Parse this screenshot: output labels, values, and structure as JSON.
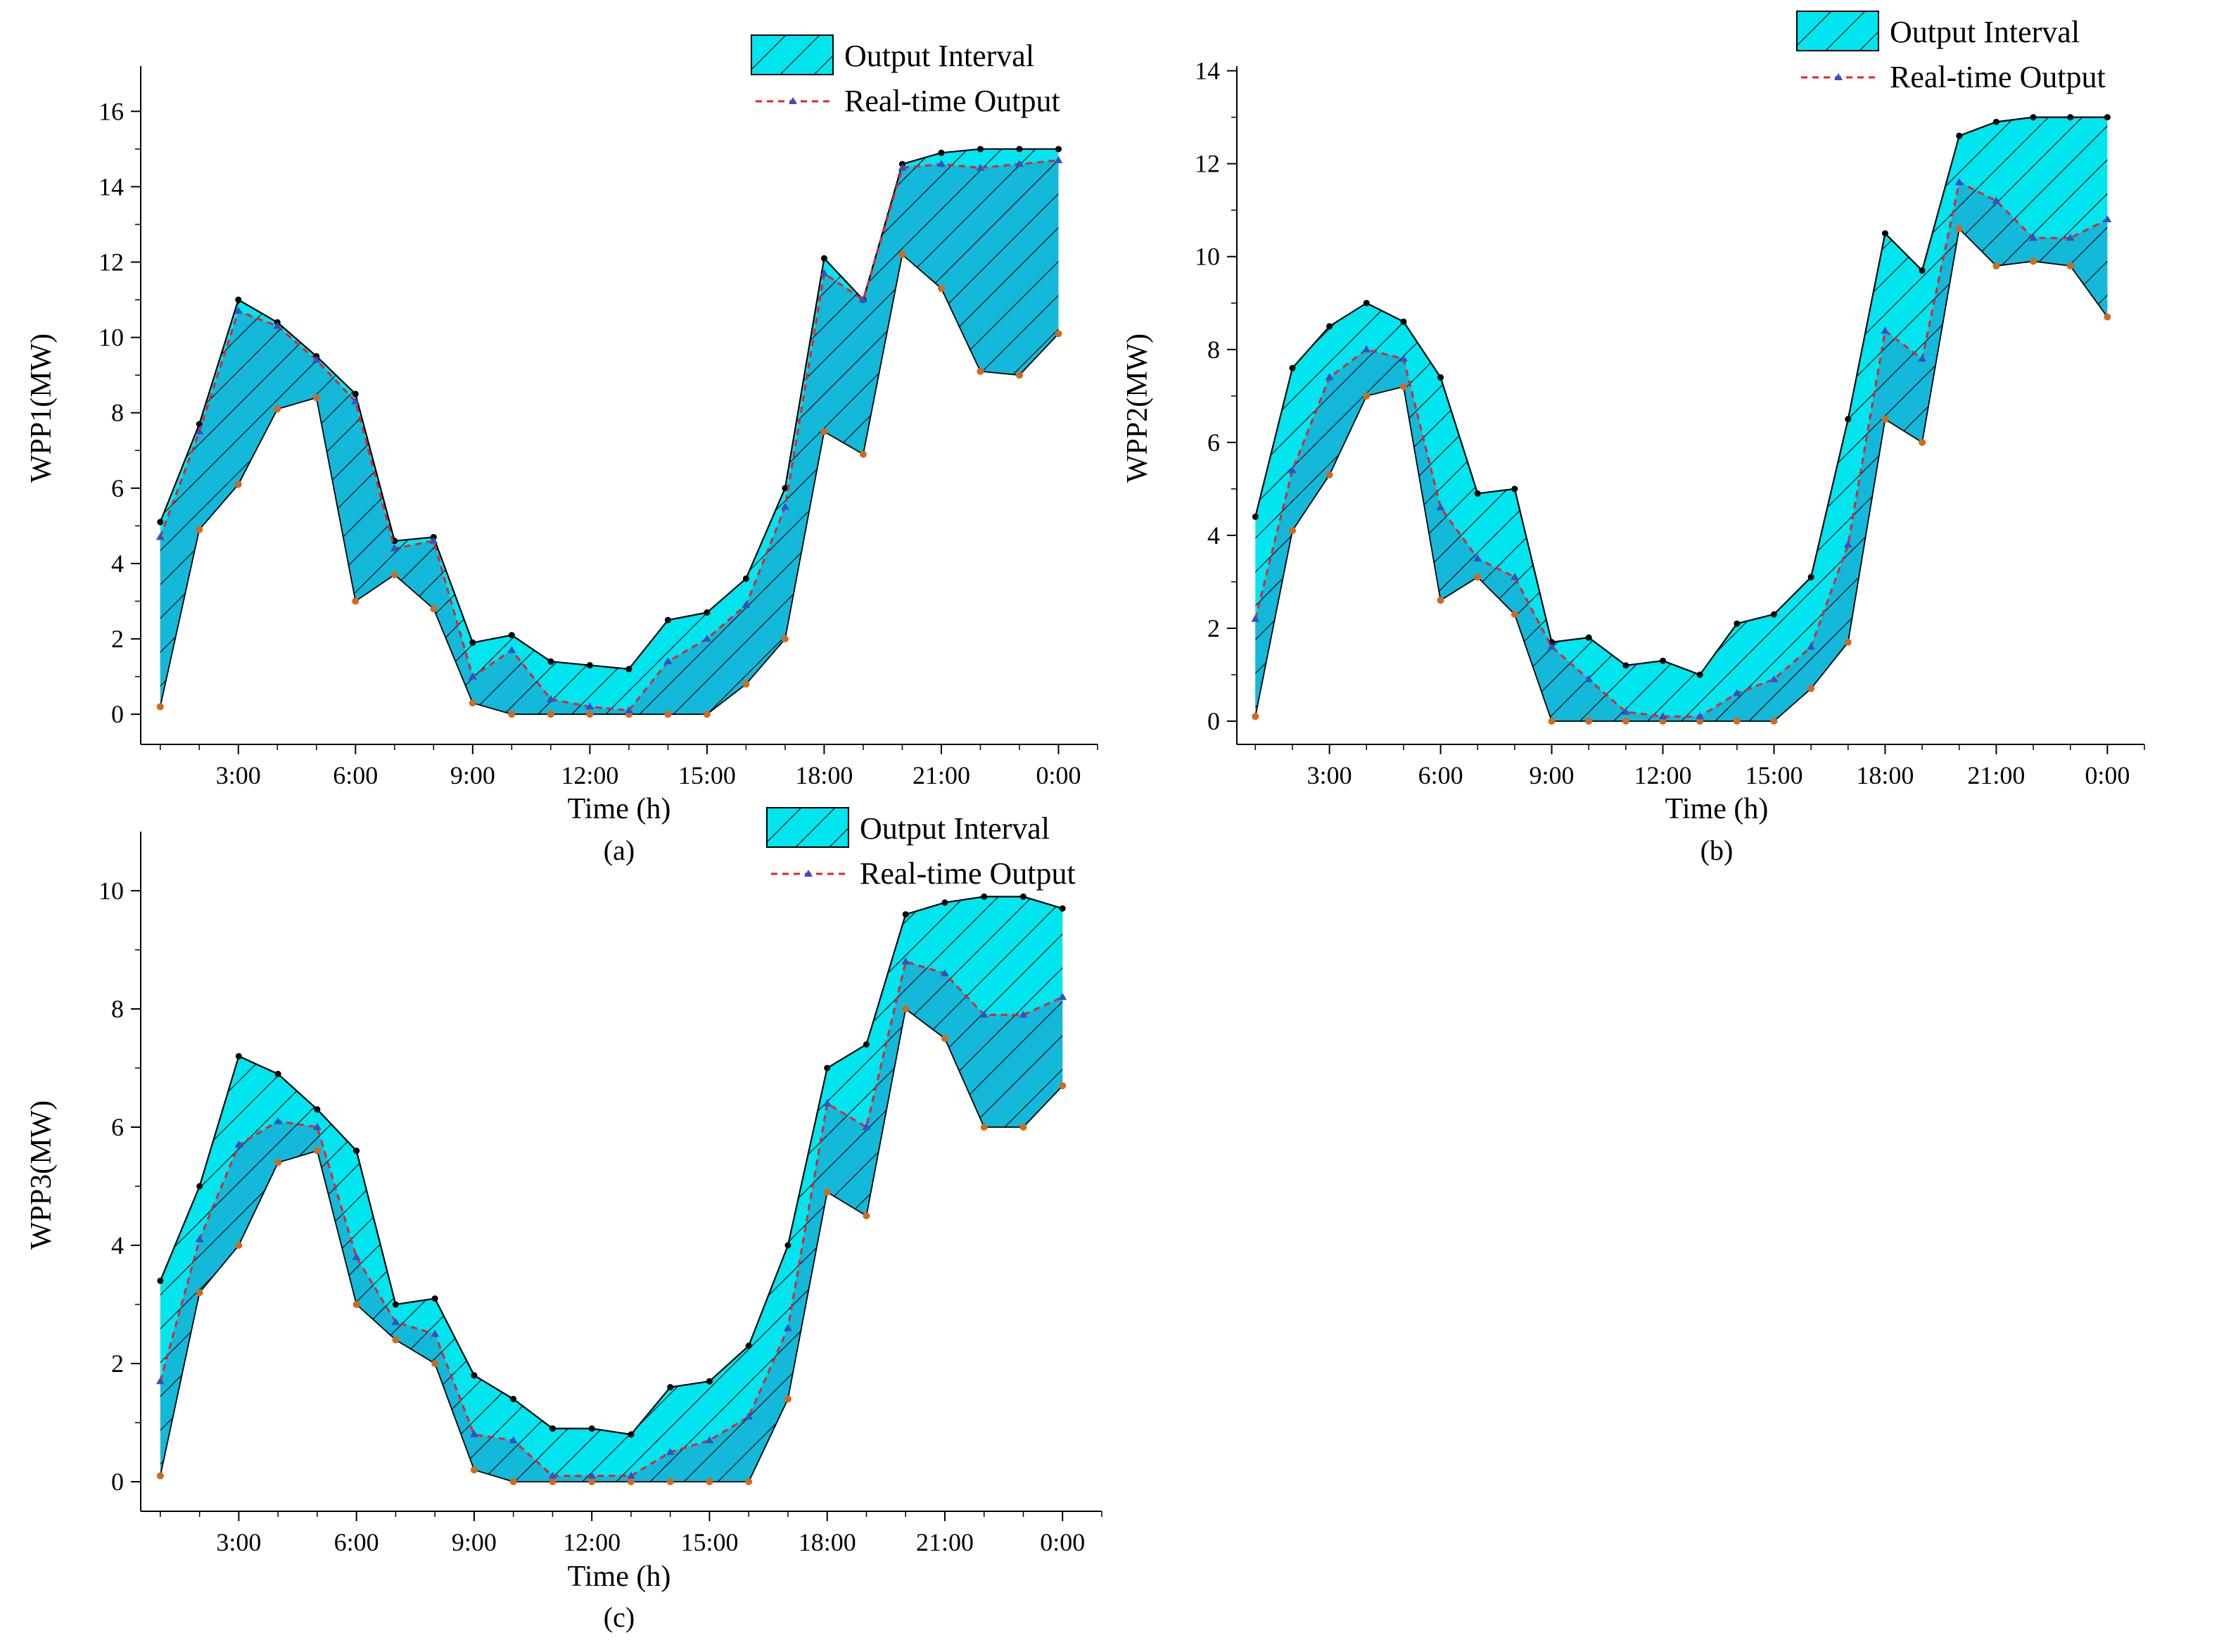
{
  "colors": {
    "interval_fill": "#00e5ee",
    "interval_overlap": "#1ba8d2",
    "upper_line": "#000000",
    "lower_marker": "#d2691e",
    "realtime_line": "#e8202a",
    "realtime_marker": "#3a4fbf"
  },
  "legend": {
    "interval_label": "Output Interval",
    "realtime_label": "Real-time Output"
  },
  "chart_data": [
    {
      "type": "area",
      "caption": "(a)",
      "title": "",
      "xlabel": "Time (h)",
      "ylabel": "WPP1(MW)",
      "xlim": [
        0.5,
        25
      ],
      "ylim": [
        -0.8,
        17.2
      ],
      "grid": false,
      "legend_position": "top-right",
      "xticks": [
        3,
        6,
        9,
        12,
        15,
        18,
        21,
        24
      ],
      "xticklabels": [
        "3:00",
        "6:00",
        "9:00",
        "12:00",
        "15:00",
        "18:00",
        "21:00",
        "0:00"
      ],
      "yticks": [
        0,
        2,
        4,
        6,
        8,
        10,
        12,
        14,
        16
      ],
      "yticklabels": [
        "0",
        "2",
        "4",
        "6",
        "8",
        "10",
        "12",
        "14",
        "16"
      ],
      "x": [
        1,
        2,
        3,
        4,
        5,
        6,
        7,
        8,
        9,
        10,
        11,
        12,
        13,
        14,
        15,
        16,
        17,
        18,
        19,
        20,
        21,
        22,
        23,
        24
      ],
      "series": [
        {
          "name": "Upper bound",
          "values": [
            5.1,
            7.7,
            11.0,
            10.4,
            9.5,
            8.5,
            4.6,
            4.7,
            1.9,
            2.1,
            1.4,
            1.3,
            1.2,
            2.5,
            2.7,
            3.6,
            6.0,
            12.1,
            11.0,
            14.6,
            14.9,
            15.0,
            15.0,
            15.0
          ]
        },
        {
          "name": "Lower bound",
          "values": [
            0.2,
            4.9,
            6.1,
            8.1,
            8.4,
            3.0,
            3.7,
            2.8,
            0.3,
            0.0,
            0.0,
            0.0,
            0.0,
            0.0,
            0.0,
            0.8,
            2.0,
            7.5,
            6.9,
            12.2,
            11.3,
            9.1,
            9.0,
            10.1
          ]
        },
        {
          "name": "Real-time Output",
          "values": [
            4.7,
            7.5,
            10.7,
            10.3,
            9.4,
            8.3,
            4.4,
            4.6,
            1.0,
            1.7,
            0.4,
            0.2,
            0.1,
            1.4,
            2.0,
            2.9,
            5.5,
            11.7,
            11.0,
            14.5,
            14.6,
            14.5,
            14.6,
            14.7
          ]
        }
      ]
    },
    {
      "type": "area",
      "caption": "(b)",
      "title": "",
      "xlabel": "Time (h)",
      "ylabel": "WPP2(MW)",
      "xlim": [
        0.5,
        25
      ],
      "ylim": [
        -0.5,
        14.1
      ],
      "grid": false,
      "legend_position": "top-right",
      "xticks": [
        3,
        6,
        9,
        12,
        15,
        18,
        21,
        24
      ],
      "xticklabels": [
        "3:00",
        "6:00",
        "9:00",
        "12:00",
        "15:00",
        "18:00",
        "21:00",
        "0:00"
      ],
      "yticks": [
        0,
        2,
        4,
        6,
        8,
        10,
        12,
        14
      ],
      "yticklabels": [
        "0",
        "2",
        "4",
        "6",
        "8",
        "10",
        "12",
        "14"
      ],
      "x": [
        1,
        2,
        3,
        4,
        5,
        6,
        7,
        8,
        9,
        10,
        11,
        12,
        13,
        14,
        15,
        16,
        17,
        18,
        19,
        20,
        21,
        22,
        23,
        24
      ],
      "series": [
        {
          "name": "Upper bound",
          "values": [
            4.4,
            7.6,
            8.5,
            9.0,
            8.6,
            7.4,
            4.9,
            5.0,
            1.7,
            1.8,
            1.2,
            1.3,
            1.0,
            2.1,
            2.3,
            3.1,
            6.5,
            10.5,
            9.7,
            12.6,
            12.9,
            13.0,
            13.0,
            13.0
          ]
        },
        {
          "name": "Lower bound",
          "values": [
            0.1,
            4.1,
            5.3,
            7.0,
            7.2,
            2.6,
            3.1,
            2.3,
            0.0,
            0.0,
            0.0,
            0.0,
            0.0,
            0.0,
            0.0,
            0.7,
            1.7,
            6.5,
            6.0,
            10.6,
            9.8,
            9.9,
            9.8,
            8.7
          ]
        },
        {
          "name": "Real-time Output",
          "values": [
            2.2,
            5.4,
            7.4,
            8.0,
            7.8,
            4.6,
            3.5,
            3.1,
            1.6,
            0.9,
            0.2,
            0.1,
            0.1,
            0.6,
            0.9,
            1.6,
            3.8,
            8.4,
            7.8,
            11.6,
            11.2,
            10.4,
            10.4,
            10.8
          ]
        }
      ]
    },
    {
      "type": "area",
      "caption": "(c)",
      "title": "",
      "xlabel": "Time (h)",
      "ylabel": "WPP3(MW)",
      "xlim": [
        0.5,
        25
      ],
      "ylim": [
        -0.5,
        11.0
      ],
      "grid": false,
      "legend_position": "top-right",
      "xticks": [
        3,
        6,
        9,
        12,
        15,
        18,
        21,
        24
      ],
      "xticklabels": [
        "3:00",
        "6:00",
        "9:00",
        "12:00",
        "15:00",
        "18:00",
        "21:00",
        "0:00"
      ],
      "yticks": [
        0,
        2,
        4,
        6,
        8,
        10
      ],
      "yticklabels": [
        "0",
        "2",
        "4",
        "6",
        "8",
        "10"
      ],
      "x": [
        1,
        2,
        3,
        4,
        5,
        6,
        7,
        8,
        9,
        10,
        11,
        12,
        13,
        14,
        15,
        16,
        17,
        18,
        19,
        20,
        21,
        22,
        23,
        24
      ],
      "series": [
        {
          "name": "Upper bound",
          "values": [
            3.4,
            5.0,
            7.2,
            6.9,
            6.3,
            5.6,
            3.0,
            3.1,
            1.8,
            1.4,
            0.9,
            0.9,
            0.8,
            1.6,
            1.7,
            2.3,
            4.0,
            7.0,
            7.4,
            9.6,
            9.8,
            9.9,
            9.9,
            9.7
          ]
        },
        {
          "name": "Lower bound",
          "values": [
            0.1,
            3.2,
            4.0,
            5.4,
            5.6,
            3.0,
            2.4,
            2.0,
            0.2,
            0.0,
            0.0,
            0.0,
            0.0,
            0.0,
            0.0,
            0.0,
            1.4,
            4.9,
            4.5,
            8.0,
            7.5,
            6.0,
            6.0,
            6.7
          ]
        },
        {
          "name": "Real-time Output",
          "values": [
            1.7,
            4.1,
            5.7,
            6.1,
            6.0,
            3.8,
            2.7,
            2.5,
            0.8,
            0.7,
            0.1,
            0.1,
            0.1,
            0.5,
            0.7,
            1.1,
            2.6,
            6.4,
            6.0,
            8.8,
            8.6,
            7.9,
            7.9,
            8.2
          ]
        }
      ]
    }
  ]
}
